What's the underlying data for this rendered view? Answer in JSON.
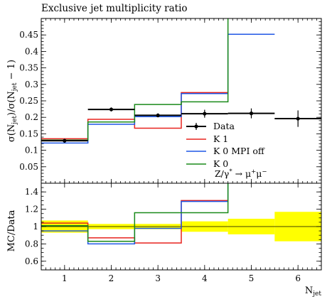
{
  "chart_data": [
    {
      "panel": "main",
      "type": "line",
      "title": "Exclusive jet multiplicity ratio",
      "ylabel": "σ(N_jet)/σ(N_jet − 1)",
      "ylabel_parts": [
        "σ(N",
        "jet",
        ")/σ(N",
        "jet",
        " − 1)"
      ],
      "ylim": [
        0,
        0.5
      ],
      "xlim": [
        0.5,
        6.5
      ],
      "yticks": [
        0.05,
        0.1,
        0.15,
        0.2,
        0.25,
        0.3,
        0.35,
        0.4,
        0.45
      ],
      "ytick_labels": [
        "0.05",
        "0.1",
        "0.15",
        "0.2",
        "0.25",
        "0.3",
        "0.35",
        "0.4",
        "0.45"
      ],
      "process_label": "Z/γ* → μ+μ−",
      "process_parts": [
        "Z/γ",
        "*",
        " → μ",
        "+",
        "μ",
        "−"
      ],
      "legend_position": "center-right",
      "series": [
        {
          "name": "Data",
          "kind": "points",
          "color": "#000000",
          "x": [
            1,
            2,
            3,
            4,
            5,
            6
          ],
          "y": [
            0.129,
            0.224,
            0.206,
            0.211,
            0.212,
            0.196
          ],
          "yerr": [
            0.006,
            0.006,
            0.006,
            0.012,
            0.015,
            0.025
          ],
          "xerr": [
            0.5,
            0.5,
            0.5,
            0.5,
            0.5,
            0.5
          ]
        },
        {
          "name": "K 1",
          "kind": "step",
          "color": "#e8231f",
          "edges": [
            0.5,
            1.5,
            2.5,
            3.5,
            4.5
          ],
          "values": [
            0.135,
            0.194,
            0.167,
            0.275
          ]
        },
        {
          "name": "K 0 MPI off",
          "kind": "step",
          "color": "#1f57e6",
          "edges": [
            0.5,
            1.5,
            2.5,
            3.5,
            4.5,
            5.5
          ],
          "values": [
            0.122,
            0.179,
            0.202,
            0.272,
            0.452
          ]
        },
        {
          "name": "K 0",
          "kind": "step",
          "color": "#1a8a1a",
          "edges": [
            0.5,
            1.5,
            2.5,
            3.5,
            4.5
          ],
          "values": [
            0.131,
            0.186,
            0.239,
            0.247
          ],
          "rise_to_top_at": 4.5
        }
      ]
    },
    {
      "panel": "ratio",
      "type": "line",
      "ylabel": "MC/Data",
      "xlabel": "N_jet",
      "xlabel_parts": [
        "N",
        "jet"
      ],
      "ylim": [
        0.5,
        1.5
      ],
      "xlim": [
        0.5,
        6.5
      ],
      "xticks": [
        1,
        2,
        3,
        4,
        5,
        6
      ],
      "xtick_labels": [
        "1",
        "2",
        "3",
        "4",
        "5",
        "6"
      ],
      "yticks": [
        0.6,
        0.8,
        1.0,
        1.2,
        1.4
      ],
      "ytick_labels": [
        "0.6",
        "0.8",
        "1",
        "1.2",
        "1.4"
      ],
      "uncertainty_band": {
        "color": "#ffff00",
        "edges": [
          0.5,
          1.5,
          2.5,
          3.5,
          4.5,
          5.5,
          6.5
        ],
        "low": [
          0.93,
          0.97,
          0.97,
          0.94,
          0.91,
          0.83
        ],
        "high": [
          1.07,
          1.03,
          1.03,
          1.06,
          1.09,
          1.17
        ]
      },
      "series": [
        {
          "name": "K 1",
          "color": "#e8231f",
          "edges": [
            0.5,
            1.5,
            2.5,
            3.5,
            4.5
          ],
          "values": [
            1.04,
            0.87,
            0.81,
            1.3
          ]
        },
        {
          "name": "K 0 MPI off",
          "color": "#1f57e6",
          "edges": [
            0.5,
            1.5,
            2.5,
            3.5,
            4.5
          ],
          "values": [
            0.95,
            0.8,
            0.98,
            1.29
          ],
          "rise_to_top_at": 4.5
        },
        {
          "name": "K 0",
          "color": "#1a8a1a",
          "edges": [
            0.5,
            1.5,
            2.5,
            3.5,
            4.5
          ],
          "values": [
            1.01,
            0.83,
            1.16,
            1.16
          ],
          "rise_to_top_at": 4.5
        }
      ]
    }
  ]
}
